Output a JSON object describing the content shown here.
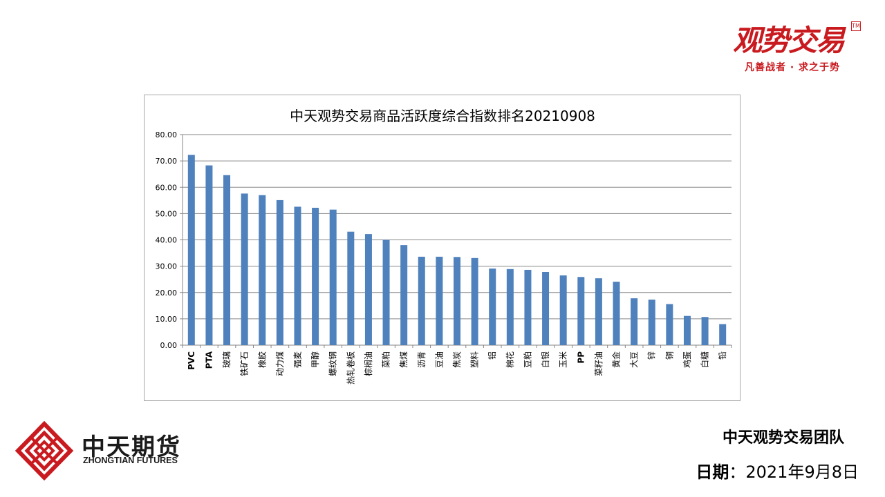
{
  "brand": {
    "title": "观势交易",
    "seal": "TM",
    "slogan": "凡善战者 · 求之于势",
    "color": "#c91a1f"
  },
  "company": {
    "name_cn": "中天期货",
    "name_en": "ZHONGTIAN FUTURES",
    "color": "#c91a1f"
  },
  "team": {
    "name": "中天观势交易团队"
  },
  "date": {
    "label": "日期",
    "separator": "：",
    "value": "2021年9月8日"
  },
  "chart_data": {
    "type": "bar",
    "title": "中天观势交易商品活跃度综合指数排名20210908",
    "xlabel": "",
    "ylabel": "",
    "ylim": [
      0,
      80
    ],
    "yticks": [
      0,
      10,
      20,
      30,
      40,
      50,
      60,
      70,
      80
    ],
    "ytick_labels": [
      "0.00",
      "10.00",
      "20.00",
      "30.00",
      "40.00",
      "50.00",
      "60.00",
      "70.00",
      "80.00"
    ],
    "grid": true,
    "legend": "none",
    "bar_color": "#4f81bd",
    "categories": [
      "PVC",
      "PTA",
      "玻璃",
      "铁矿石",
      "橡胶",
      "动力煤",
      "强麦",
      "甲醇",
      "螺纹钢",
      "热轧卷板",
      "棕榈油",
      "菜粕",
      "焦煤",
      "沥青",
      "豆油",
      "焦炭",
      "塑料",
      "铝",
      "棉花",
      "豆粕",
      "白银",
      "玉米",
      "PP",
      "菜籽油",
      "黄金",
      "大豆",
      "锌",
      "铜",
      "鸡蛋",
      "白糖",
      "铅"
    ],
    "values": [
      72.3,
      68.3,
      64.6,
      57.6,
      57.0,
      55.1,
      52.6,
      52.2,
      51.5,
      43.1,
      42.2,
      40.0,
      38.0,
      33.6,
      33.6,
      33.5,
      33.1,
      29.1,
      28.9,
      28.6,
      27.8,
      26.5,
      25.9,
      25.4,
      24.1,
      17.8,
      17.3,
      15.6,
      11.1,
      10.7,
      8.0
    ]
  }
}
